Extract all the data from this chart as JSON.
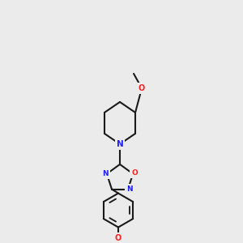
{
  "bg_color": "#ebebeb",
  "bond_color": "#1a1a1a",
  "bond_width": 1.5,
  "atom_colors": {
    "N": "#2020ff",
    "O": "#ff2020",
    "C": "#1a1a1a"
  },
  "figsize": [
    3.0,
    3.0
  ],
  "dpi": 100
}
